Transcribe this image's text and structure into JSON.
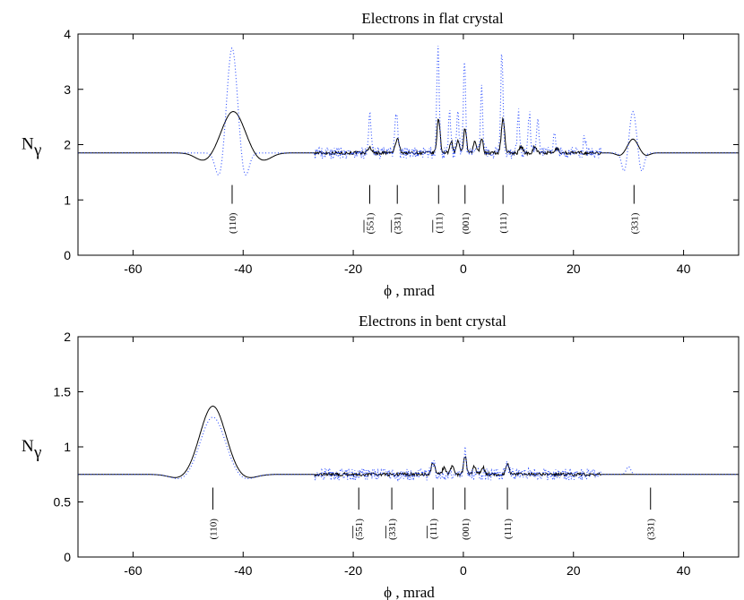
{
  "chart_data": [
    {
      "type": "line",
      "title": "Electrons in flat crystal",
      "xlabel": "ϕ , mrad",
      "ylabel": "N",
      "ylabel_sub": "γ",
      "xlim": [
        -70,
        50
      ],
      "ylim": [
        0,
        4
      ],
      "xticks": [
        -60,
        -40,
        -20,
        0,
        20,
        40
      ],
      "yticks": [
        0,
        1,
        2,
        3,
        4
      ],
      "baseline": 1.85,
      "series": [
        {
          "style": "solid",
          "color": "#000000",
          "peaks": [
            {
              "x": -41.8,
              "h": 0.75,
              "w": 2.0,
              "kind": "hill",
              "dip": -0.15
            },
            {
              "x": -17,
              "h": 0.1,
              "w": 0.35
            },
            {
              "x": -12,
              "h": 0.25,
              "w": 0.35
            },
            {
              "x": -4.5,
              "h": 0.62,
              "w": 0.28
            },
            {
              "x": -2.2,
              "h": 0.22,
              "w": 0.25
            },
            {
              "x": -1,
              "h": 0.22,
              "w": 0.25
            },
            {
              "x": 0.3,
              "h": 0.45,
              "w": 0.25
            },
            {
              "x": 2.1,
              "h": 0.22,
              "w": 0.25
            },
            {
              "x": 3.3,
              "h": 0.28,
              "w": 0.25
            },
            {
              "x": 7.2,
              "h": 0.62,
              "w": 0.3
            },
            {
              "x": 10.5,
              "h": 0.12,
              "w": 0.3
            },
            {
              "x": 13,
              "h": 0.12,
              "w": 0.3
            },
            {
              "x": 17,
              "h": 0.08,
              "w": 0.3
            },
            {
              "x": 30.8,
              "h": 0.25,
              "w": 0.9,
              "kind": "hill",
              "dip": -0.05
            }
          ]
        },
        {
          "style": "dotted",
          "color": "#2b4dff",
          "peaks": [
            {
              "x": -42,
              "h": 1.9,
              "w": 0.9,
              "kind": "hill",
              "dip": -0.45
            },
            {
              "x": -17,
              "h": 0.7,
              "w": 0.25
            },
            {
              "x": -12.2,
              "h": 0.75,
              "w": 0.25
            },
            {
              "x": -4.6,
              "h": 1.9,
              "w": 0.22
            },
            {
              "x": -2.5,
              "h": 0.8,
              "w": 0.2
            },
            {
              "x": -1,
              "h": 0.8,
              "w": 0.2
            },
            {
              "x": 0.2,
              "h": 1.65,
              "w": 0.2
            },
            {
              "x": 3.3,
              "h": 1.25,
              "w": 0.2
            },
            {
              "x": 7,
              "h": 1.8,
              "w": 0.22
            },
            {
              "x": 10,
              "h": 0.75,
              "w": 0.2
            },
            {
              "x": 12,
              "h": 0.7,
              "w": 0.2
            },
            {
              "x": 13.5,
              "h": 0.7,
              "w": 0.2
            },
            {
              "x": 16.5,
              "h": 0.35,
              "w": 0.2
            },
            {
              "x": 22,
              "h": 0.3,
              "w": 0.2
            },
            {
              "x": 30.8,
              "h": 0.75,
              "w": 0.6,
              "kind": "hill",
              "dip": -0.35
            }
          ]
        }
      ],
      "planes": [
        {
          "x": -42,
          "label": "(110)",
          "bar": false
        },
        {
          "x": -17,
          "label": "(551)",
          "bar": true
        },
        {
          "x": -12,
          "label": "(331)",
          "bar": true
        },
        {
          "x": -4.5,
          "label": "(111)",
          "bar": true
        },
        {
          "x": 0.3,
          "label": "(001)",
          "bar": false
        },
        {
          "x": 7.2,
          "label": "(111)",
          "bar": false
        },
        {
          "x": 31,
          "label": "(331)",
          "bar": false
        }
      ],
      "plane_marker_y": [
        0.93,
        1.27
      ]
    },
    {
      "type": "line",
      "title": "Electrons in bent crystal",
      "xlabel": "ϕ , mrad",
      "ylabel": "N",
      "ylabel_sub": "γ",
      "xlim": [
        -70,
        50
      ],
      "ylim": [
        0,
        2
      ],
      "xticks": [
        -60,
        -40,
        -20,
        0,
        20,
        40
      ],
      "yticks": [
        0,
        0.5,
        1,
        1.5,
        2
      ],
      "baseline": 0.75,
      "series": [
        {
          "style": "solid",
          "color": "#000000",
          "peaks": [
            {
              "x": -45.5,
              "h": 0.62,
              "w": 2.3,
              "kind": "hill",
              "dip": -0.04
            },
            {
              "x": -5.5,
              "h": 0.11,
              "w": 0.3
            },
            {
              "x": -3.5,
              "h": 0.06,
              "w": 0.3
            },
            {
              "x": -2,
              "h": 0.08,
              "w": 0.3
            },
            {
              "x": 0.3,
              "h": 0.17,
              "w": 0.25
            },
            {
              "x": 2,
              "h": 0.07,
              "w": 0.3
            },
            {
              "x": 3.5,
              "h": 0.07,
              "w": 0.3
            },
            {
              "x": 8,
              "h": 0.1,
              "w": 0.3
            }
          ]
        },
        {
          "style": "dotted",
          "color": "#2b4dff",
          "peaks": [
            {
              "x": -45.5,
              "h": 0.52,
              "w": 2.2,
              "kind": "hill",
              "dip": -0.05
            },
            {
              "x": -5.5,
              "h": 0.1,
              "w": 0.3
            },
            {
              "x": 0.3,
              "h": 0.22,
              "w": 0.25
            },
            {
              "x": 8,
              "h": 0.08,
              "w": 0.3
            },
            {
              "x": 30,
              "h": 0.07,
              "w": 0.4
            }
          ]
        }
      ],
      "planes": [
        {
          "x": -45.5,
          "label": "(110)",
          "bar": false
        },
        {
          "x": -19,
          "label": "(551)",
          "bar": true
        },
        {
          "x": -13,
          "label": "(331)",
          "bar": true
        },
        {
          "x": -5.5,
          "label": "(111)",
          "bar": true
        },
        {
          "x": 0.3,
          "label": "(001)",
          "bar": false
        },
        {
          "x": 8,
          "label": "(111)",
          "bar": false
        },
        {
          "x": 34,
          "label": "(331)",
          "bar": false
        }
      ],
      "plane_marker_y": [
        0.43,
        0.63
      ]
    }
  ]
}
